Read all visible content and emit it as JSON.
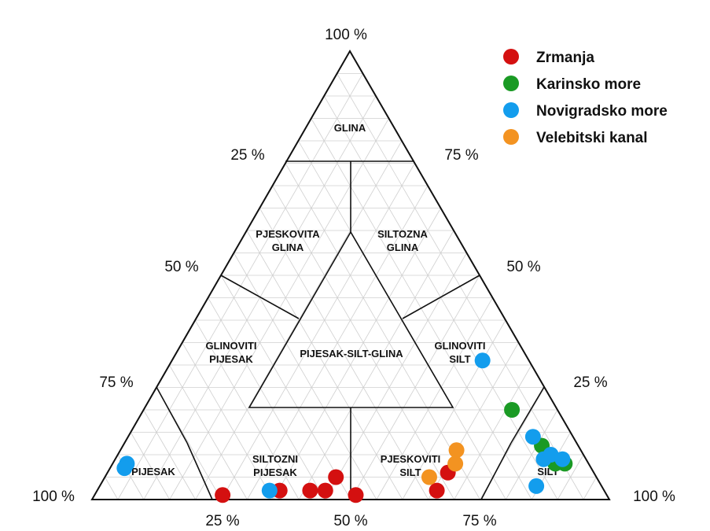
{
  "chart_data": {
    "type": "scatter",
    "subtype": "ternary",
    "grid": true,
    "legend_position": "top-right",
    "apex_label": "100 %",
    "left_corner_label": "100 %",
    "right_corner_label": "100 %",
    "left_axis_ticks": [
      "25 %",
      "50 %",
      "75 %"
    ],
    "right_axis_ticks": [
      "75 %",
      "50 %",
      "25 %"
    ],
    "bottom_axis_ticks": [
      "25 %",
      "50 %",
      "75 %"
    ],
    "fields": {
      "glina": [
        "GLINA"
      ],
      "pjeskovita_glina": [
        "PJESKOVITA",
        "GLINA"
      ],
      "siltozna_glina": [
        "SILTOZNA",
        "GLINA"
      ],
      "glinoviti_pijesak": [
        "GLINOVITI",
        "PIJESAK"
      ],
      "pijesak_silt_glina": [
        "PIJESAK-SILT-GLINA"
      ],
      "glinoviti_silt": [
        "GLINOVITI",
        "SILT"
      ],
      "pijesak": [
        "PIJESAK"
      ],
      "siltozni_pijesak": [
        "SILTOZNI",
        "PIJESAK"
      ],
      "pjeskoviti_silt": [
        "PJESKOVITI",
        "SILT"
      ],
      "silt": [
        "SILT"
      ]
    },
    "series": [
      {
        "name": "Zrmanja",
        "color": "#d41010",
        "points": [
          {
            "x": 25,
            "y": 1
          },
          {
            "x": 36,
            "y": 2
          },
          {
            "x": 42,
            "y": 2
          },
          {
            "x": 45,
            "y": 2
          },
          {
            "x": 47,
            "y": 5
          },
          {
            "x": 51,
            "y": 1
          },
          {
            "x": 67,
            "y": 2
          },
          {
            "x": 70,
            "y": 6
          }
        ]
      },
      {
        "name": "Karinsko more",
        "color": "#1a9a24",
        "points": [
          {
            "x": 89,
            "y": 20
          },
          {
            "x": 92,
            "y": 12
          },
          {
            "x": 93,
            "y": 8
          },
          {
            "x": 95,
            "y": 8
          }
        ]
      },
      {
        "name": "Novigradsko more",
        "color": "#139ded",
        "points": [
          {
            "x": 3,
            "y": 8
          },
          {
            "x": 3,
            "y": 7
          },
          {
            "x": 34,
            "y": 2
          },
          {
            "x": 91,
            "y": 14
          },
          {
            "x": 91,
            "y": 9
          },
          {
            "x": 93,
            "y": 10
          },
          {
            "x": 95,
            "y": 9
          },
          {
            "x": 87,
            "y": 3
          },
          {
            "x": 87,
            "y": 31
          }
        ]
      },
      {
        "name": "Velebitski kanal",
        "color": "#f39321",
        "points": [
          {
            "x": 66,
            "y": 5
          },
          {
            "x": 72,
            "y": 8
          },
          {
            "x": 73,
            "y": 11
          }
        ]
      }
    ]
  }
}
